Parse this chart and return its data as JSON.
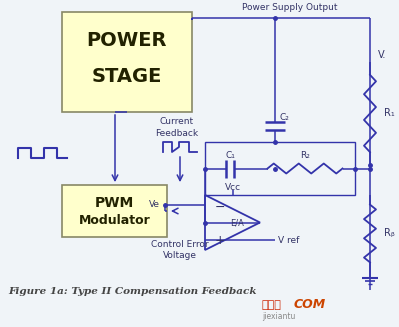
{
  "bg_color": "#f0f4f8",
  "title": "Figure 1a: Type II Compensation Feedback",
  "line_color": "#3333aa",
  "component_color": "#3333aa",
  "text_color": "#333366",
  "box_fill_power": "#ffffcc",
  "box_fill_pwm": "#ffffcc",
  "box_border": "#888866",
  "watermark_cn": "接线图",
  "watermark_en": "jiexiantu",
  "watermark_com": "COM",
  "wm_color1": "#cc2200",
  "wm_color2": "#cc4400",
  "wm_color3": "#888888"
}
